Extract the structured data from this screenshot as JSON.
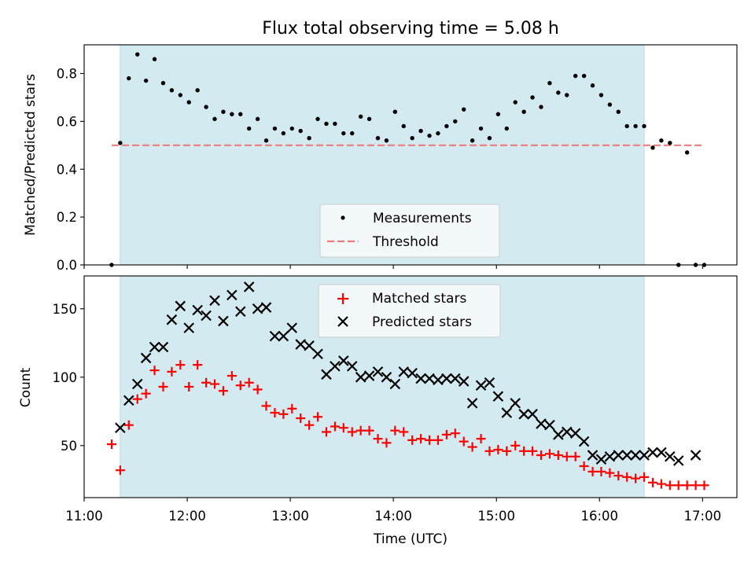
{
  "chart_data": [
    {
      "type": "scatter",
      "title": "Flux total observing time = 5.08 h",
      "xlabel": "",
      "ylabel": "Matched/Predicted stars",
      "xlim": [
        "11:00",
        "17:20"
      ],
      "ylim": [
        0,
        0.92
      ],
      "yticks": [
        0.0,
        0.2,
        0.4,
        0.6,
        0.8
      ],
      "ytick_labels": [
        "0.0",
        "0.2",
        "0.4",
        "0.6",
        "0.8"
      ],
      "observing_window": [
        "11:21",
        "16:26"
      ],
      "legend_position": "lower center",
      "series": [
        {
          "name": "Measurements",
          "marker": "dot",
          "color": "#000000",
          "x": [
            "11:16",
            "11:21",
            "11:26",
            "11:31",
            "11:36",
            "11:41",
            "11:46",
            "11:51",
            "11:56",
            "12:01",
            "12:06",
            "12:11",
            "12:16",
            "12:21",
            "12:26",
            "12:31",
            "12:36",
            "12:41",
            "12:46",
            "12:51",
            "12:56",
            "13:01",
            "13:06",
            "13:11",
            "13:16",
            "13:21",
            "13:26",
            "13:31",
            "13:36",
            "13:41",
            "13:46",
            "13:51",
            "13:56",
            "14:01",
            "14:06",
            "14:11",
            "14:16",
            "14:21",
            "14:26",
            "14:31",
            "14:36",
            "14:41",
            "14:46",
            "14:51",
            "14:56",
            "15:01",
            "15:06",
            "15:11",
            "15:16",
            "15:21",
            "15:26",
            "15:31",
            "15:36",
            "15:41",
            "15:46",
            "15:51",
            "15:56",
            "16:01",
            "16:06",
            "16:11",
            "16:16",
            "16:21",
            "16:26",
            "16:31",
            "16:36",
            "16:41",
            "16:46",
            "16:51",
            "16:56",
            "17:01"
          ],
          "y": [
            0.0,
            0.51,
            0.78,
            0.88,
            0.77,
            0.86,
            0.76,
            0.73,
            0.71,
            0.68,
            0.73,
            0.66,
            0.61,
            0.64,
            0.63,
            0.63,
            0.57,
            0.61,
            0.52,
            0.57,
            0.55,
            0.57,
            0.56,
            0.53,
            0.61,
            0.59,
            0.59,
            0.55,
            0.55,
            0.62,
            0.61,
            0.53,
            0.52,
            0.64,
            0.58,
            0.53,
            0.56,
            0.54,
            0.55,
            0.58,
            0.6,
            0.65,
            0.52,
            0.57,
            0.53,
            0.63,
            0.57,
            0.68,
            0.64,
            0.7,
            0.66,
            0.76,
            0.72,
            0.71,
            0.79,
            0.79,
            0.75,
            0.71,
            0.67,
            0.64,
            0.58,
            0.58,
            0.58,
            0.49,
            0.52,
            0.51,
            0.0,
            0.47,
            0.0,
            0.0
          ]
        },
        {
          "name": "Threshold",
          "marker": "dashed-line",
          "color": "#f08080",
          "x": [
            "11:16",
            "17:01"
          ],
          "y": [
            0.5,
            0.5
          ]
        }
      ]
    },
    {
      "type": "scatter",
      "title": "",
      "xlabel": "Time (UTC)",
      "ylabel": "Count",
      "xlim": [
        "11:00",
        "17:20"
      ],
      "ylim": [
        12,
        174
      ],
      "xticks": [
        "11:00",
        "12:00",
        "13:00",
        "14:00",
        "15:00",
        "16:00",
        "17:00"
      ],
      "yticks": [
        50,
        100,
        150
      ],
      "ytick_labels": [
        "50",
        "100",
        "150"
      ],
      "observing_window": [
        "11:21",
        "16:26"
      ],
      "legend_position": "upper center",
      "series": [
        {
          "name": "Matched stars",
          "marker": "plus",
          "color": "#ff0000",
          "x": [
            "11:16",
            "11:21",
            "11:26",
            "11:31",
            "11:36",
            "11:41",
            "11:46",
            "11:51",
            "11:56",
            "12:01",
            "12:06",
            "12:11",
            "12:16",
            "12:21",
            "12:26",
            "12:31",
            "12:36",
            "12:41",
            "12:46",
            "12:51",
            "12:56",
            "13:01",
            "13:06",
            "13:11",
            "13:16",
            "13:21",
            "13:26",
            "13:31",
            "13:36",
            "13:41",
            "13:46",
            "13:51",
            "13:56",
            "14:01",
            "14:06",
            "14:11",
            "14:16",
            "14:21",
            "14:26",
            "14:31",
            "14:36",
            "14:41",
            "14:46",
            "14:51",
            "14:56",
            "15:01",
            "15:06",
            "15:11",
            "15:16",
            "15:21",
            "15:26",
            "15:31",
            "15:36",
            "15:41",
            "15:46",
            "15:51",
            "15:56",
            "16:01",
            "16:06",
            "16:11",
            "16:16",
            "16:21",
            "16:26",
            "16:31",
            "16:36",
            "16:41",
            "16:46",
            "16:51",
            "16:56",
            "17:01"
          ],
          "y": [
            51,
            32,
            65,
            84,
            88,
            105,
            93,
            104,
            109,
            93,
            109,
            96,
            95,
            90,
            101,
            94,
            96,
            91,
            79,
            74,
            73,
            77,
            70,
            65,
            71,
            60,
            64,
            63,
            60,
            61,
            61,
            55,
            52,
            61,
            60,
            54,
            55,
            54,
            54,
            58,
            59,
            53,
            49,
            55,
            46,
            47,
            46,
            50,
            46,
            46,
            43,
            44,
            43,
            42,
            42,
            35,
            31,
            31,
            30,
            28,
            27,
            26,
            27,
            23,
            22,
            21,
            21,
            21,
            21,
            21
          ]
        },
        {
          "name": "Predicted stars",
          "marker": "x",
          "color": "#000000",
          "x": [
            "11:21",
            "11:26",
            "11:31",
            "11:36",
            "11:41",
            "11:46",
            "11:51",
            "11:56",
            "12:01",
            "12:06",
            "12:11",
            "12:16",
            "12:21",
            "12:26",
            "12:31",
            "12:36",
            "12:41",
            "12:46",
            "12:51",
            "12:56",
            "13:01",
            "13:06",
            "13:11",
            "13:16",
            "13:21",
            "13:26",
            "13:31",
            "13:36",
            "13:41",
            "13:46",
            "13:51",
            "13:56",
            "14:01",
            "14:06",
            "14:11",
            "14:16",
            "14:21",
            "14:26",
            "14:31",
            "14:36",
            "14:41",
            "14:46",
            "14:51",
            "14:56",
            "15:01",
            "15:06",
            "15:11",
            "15:16",
            "15:21",
            "15:26",
            "15:31",
            "15:36",
            "15:41",
            "15:46",
            "15:51",
            "15:56",
            "16:01",
            "16:06",
            "16:11",
            "16:16",
            "16:21",
            "16:26",
            "16:31",
            "16:36",
            "16:41",
            "16:46",
            "16:56"
          ],
          "y": [
            63,
            83,
            95,
            114,
            122,
            122,
            142,
            152,
            136,
            149,
            145,
            156,
            141,
            160,
            148,
            166,
            150,
            151,
            130,
            130,
            136,
            124,
            123,
            117,
            102,
            108,
            112,
            108,
            100,
            101,
            104,
            100,
            95,
            104,
            103,
            99,
            99,
            98,
            99,
            99,
            97,
            81,
            94,
            96,
            86,
            74,
            81,
            73,
            73,
            66,
            65,
            58,
            60,
            59,
            53,
            43,
            40,
            42,
            43,
            43,
            43,
            43,
            45,
            45,
            42,
            39,
            43
          ]
        }
      ]
    }
  ]
}
